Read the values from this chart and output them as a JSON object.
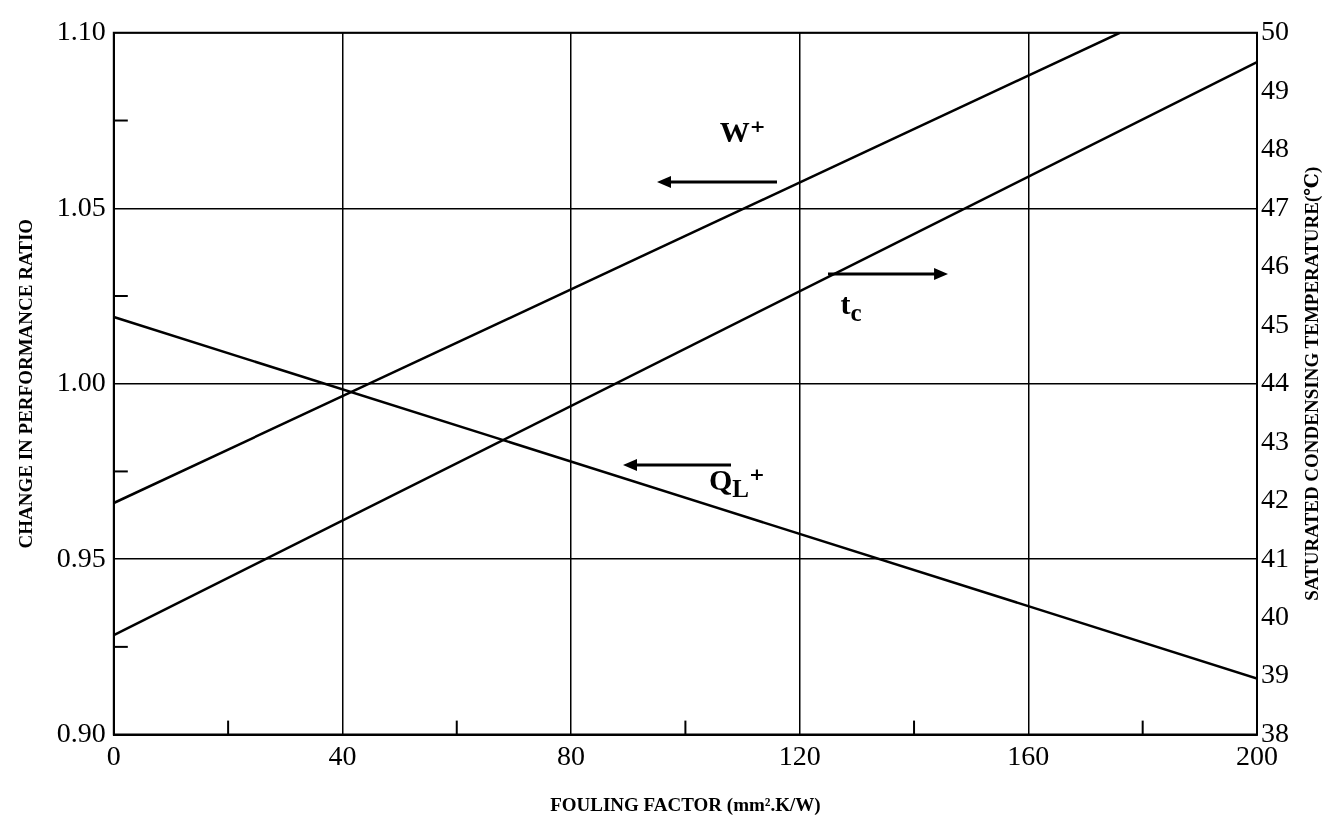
{
  "chart_data": {
    "type": "line",
    "xlabel": "FOULING FACTOR (mm².K/W)",
    "ylabel": "CHANGE IN PERFORMANCE RATIO",
    "y2label": "SATURATED CONDENSING TEMPERATURE(℃)",
    "xlim": [
      0,
      200
    ],
    "xticks": [
      0,
      {
        "value": 20,
        "label": null
      },
      40,
      {
        "value": 60,
        "label": null
      },
      80,
      {
        "value": 100,
        "label": null
      },
      120,
      {
        "value": 140,
        "label": null
      },
      160,
      {
        "value": 180,
        "label": null
      },
      200
    ],
    "ylim": [
      0.9,
      1.1
    ],
    "yticks": [
      {
        "value": 0.9,
        "label": "0.90"
      },
      {
        "value": 0.925,
        "label": null
      },
      {
        "value": 0.95,
        "label": "0.95"
      },
      {
        "value": 0.975,
        "label": null
      },
      {
        "value": 1.0,
        "label": "1.00"
      },
      {
        "value": 1.025,
        "label": null
      },
      {
        "value": 1.05,
        "label": "1.05"
      },
      {
        "value": 1.075,
        "label": null
      },
      {
        "value": 1.1,
        "label": "1.10"
      }
    ],
    "y2lim": [
      38,
      50
    ],
    "y2ticks": [
      38,
      39,
      40,
      41,
      42,
      43,
      44,
      45,
      46,
      47,
      48,
      49,
      50
    ],
    "series": [
      {
        "type": "line",
        "color": "#000000",
        "x": [
          0,
          176
        ],
        "values": [
          0.966,
          1.1
        ]
      },
      {
        "type": "line",
        "color": "#000000",
        "axis": "y2",
        "x": [
          0,
          200
        ],
        "values": [
          39.7,
          49.5
        ]
      },
      {
        "type": "line",
        "color": "#000000",
        "x": [
          0,
          200
        ],
        "values": [
          1.019,
          0.916
        ]
      }
    ],
    "annotations": [
      "W⁺",
      "t$_{c}$",
      "Q$_{L}$⁺"
    ],
    "grid": true,
    "legend": false,
    "marker": "none",
    "line_style": "solid"
  }
}
